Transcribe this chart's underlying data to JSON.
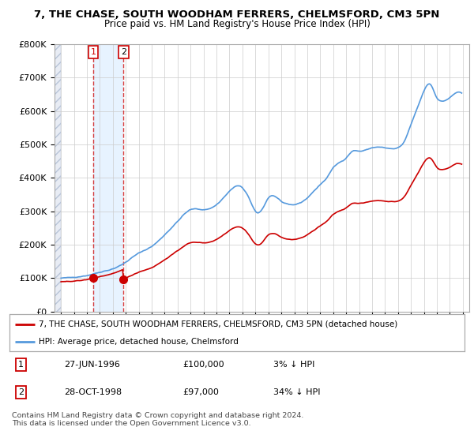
{
  "title1": "7, THE CHASE, SOUTH WOODHAM FERRERS, CHELMSFORD, CM3 5PN",
  "title2": "Price paid vs. HM Land Registry's House Price Index (HPI)",
  "hpi_color": "#5599dd",
  "price_color": "#cc0000",
  "sale1_date": 1996.49,
  "sale1_price": 100000,
  "sale2_date": 1998.83,
  "sale2_price": 97000,
  "legend_entry1": "7, THE CHASE, SOUTH WOODHAM FERRERS, CHELMSFORD, CM3 5PN (detached house)",
  "legend_entry2": "HPI: Average price, detached house, Chelmsford",
  "table_row1": [
    "1",
    "27-JUN-1996",
    "£100,000",
    "3% ↓ HPI"
  ],
  "table_row2": [
    "2",
    "28-OCT-1998",
    "£97,000",
    "34% ↓ HPI"
  ],
  "footnote": "Contains HM Land Registry data © Crown copyright and database right 2024.\nThis data is licensed under the Open Government Licence v3.0.",
  "ylim": [
    0,
    800000
  ],
  "xlim_start": 1993.5,
  "xlim_end": 2025.5,
  "hatch_end": 1994.0,
  "shade_start": 1996.49,
  "shade_end": 1998.83
}
